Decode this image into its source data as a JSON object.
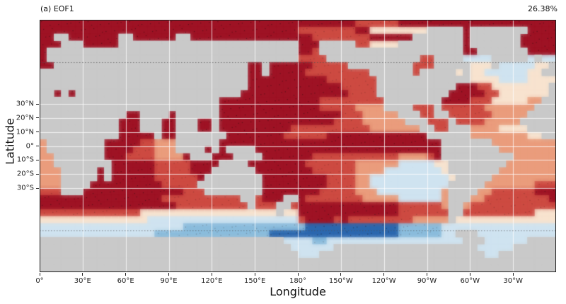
{
  "chart_data": {
    "type": "heatmap",
    "title_left": "(a) EOF1",
    "title_right": "26.38%",
    "xlabel": "Longitude",
    "ylabel": "Latitude",
    "x_range_deg": [
      0,
      360
    ],
    "y_range_deg": [
      -90,
      90
    ],
    "x_ticks": [
      {
        "deg": 0,
        "label": "0°"
      },
      {
        "deg": 30,
        "label": "30°E"
      },
      {
        "deg": 60,
        "label": "60°E"
      },
      {
        "deg": 90,
        "label": "90°E"
      },
      {
        "deg": 120,
        "label": "120°E"
      },
      {
        "deg": 150,
        "label": "150°E"
      },
      {
        "deg": 180,
        "label": "180°"
      },
      {
        "deg": 210,
        "label": "150°W"
      },
      {
        "deg": 240,
        "label": "120°W"
      },
      {
        "deg": 270,
        "label": "90°W"
      },
      {
        "deg": 300,
        "label": "60°W"
      },
      {
        "deg": 330,
        "label": "30°W"
      }
    ],
    "y_ticks": [
      {
        "deg": 30,
        "label": "30°N"
      },
      {
        "deg": 20,
        "label": "20°N"
      },
      {
        "deg": 10,
        "label": "10°N"
      },
      {
        "deg": 0,
        "label": "0°"
      },
      {
        "deg": -10,
        "label": "10°S"
      },
      {
        "deg": -20,
        "label": "20°S"
      },
      {
        "deg": -30,
        "label": "30°S"
      }
    ],
    "graticule": {
      "lon_step_deg": 30,
      "lat_solid_deg": [
        30,
        20,
        10,
        0,
        -10,
        -20,
        -30
      ],
      "lat_dashed_deg": [
        60,
        -60
      ]
    },
    "palette": {
      "L": "#c9c9c9",
      "D": "#9e1324",
      "r": "#cd4a42",
      "s": "#ea9c7c",
      "c": "#f8e3cf",
      "p": "#cfe3f0",
      "b": "#8abcdc",
      "B": "#2b67ae"
    },
    "class_values": {
      "L": "land",
      "D": 3,
      "r": 2,
      "s": 1,
      "c": 0,
      "p": -1,
      "b": -2,
      "B": -3
    },
    "grid_cols": 72,
    "grid_rows": 36,
    "grid": [
      [
        "DDDDDD",
        "DDDDDD",
        "DDDDDD",
        "DDDDDD",
        "DDDDDD",
        "DDDDDD",
        "DDDDDD",
        "DDrrrr",
        "rrDDDD",
        "DDDDDD",
        "DDDDDD",
        "DDDDDD"
      ],
      [
        "DDDDDD",
        "DDDDDD",
        "DDDDDD",
        "DDDDDD",
        "DDDDDD",
        "DDDDDD",
        "rrrrrr",
        "rrDDcc",
        "cccccc",
        "LLLLLD",
        "LLLLLL",
        "LLDDDD"
      ],
      [
        "DDLLDD",
        "DDDDDL",
        "LDDDDD",
        "DLLDDD",
        "DDDDDD",
        "DDDDDD",
        "DDrrrr",
        "rrrrDD",
        "DDDDLL",
        "LLLLLD",
        "LLLLLL",
        "LDDDDD"
      ],
      [
        "DDDLLL",
        "DDDDDL",
        "LLLLLL",
        "LLLLLL",
        "LLLLLL",
        "LLLLLL",
        "DDDLLL",
        "LLrrcc",
        "ccLLLL",
        "LLLLLD",
        "LLLLLL",
        "LDDDDD"
      ],
      [
        "DLLLLL",
        "LLLLLL",
        "LLLLLL",
        "LLLLLL",
        "LLLLLL",
        "LLLLLL",
        "DDrLLL",
        "LLLLLL",
        "LLLLLL",
        "LLLLLD",
        "DLLLLL",
        "LLDDDD"
      ],
      [
        "DLLLLL",
        "LLLLLL",
        "LLLLLL",
        "LLLLLL",
        "LLLLLL",
        "LLLLLL",
        "rrrrLL",
        "LLLLLL",
        "LLLLLr",
        "rLLLLp",
        "pppLLL",
        "LLpLpp"
      ],
      [
        "DDLLLL",
        "LLLLLL",
        "LLLLLL",
        "LLLLLL",
        "LLLLLD",
        "DLDDDD",
        "DDrrrr",
        "rLLLLL",
        "LLLLrr",
        "rLLLLL",
        "cccLpp",
        "pppccL"
      ],
      [
        "LLLLLL",
        "LLLLLL",
        "LLLLLL",
        "LLLLLL",
        "LLLLLD",
        "DLDDDD",
        "Drrrrr",
        "rrrrLL",
        "LLLLrL",
        "LLLLcL",
        "ccpppp",
        "ppccLL"
      ],
      [
        "LLLLLL",
        "LLLLLL",
        "LLLLLL",
        "LLLLLL",
        "LLLLLD",
        "DDDDDD",
        "DDDDrr",
        "rrrrrL",
        "LLLLLL",
        "LLLLLL",
        "ccccpp",
        "ppcccc"
      ],
      [
        "LLLLLL",
        "LLLLLL",
        "LLLLLL",
        "LLLLLL",
        "LLLLLD",
        "DDDDDD",
        "DDDDDD",
        "rrrrrL",
        "LLLLLL",
        "LLLLDD",
        "Drrccc",
        "cccccL"
      ],
      [
        "LLDLDL",
        "LLLLLL",
        "LLLLLL",
        "LLLLLL",
        "LLLLDD",
        "DDDDDD",
        "DDDDDD",
        "DrrrrL",
        "LLLLLL",
        "LLLDDD",
        "DDrrcc",
        "cccccL"
      ],
      [
        "LLLLLL",
        "LLLLLL",
        "LLLLLL",
        "LLLLLL",
        "LDDDDD",
        "DDDDDD",
        "DDDrrr",
        "rrrrrr",
        "LLLLLL",
        "LLDDDD",
        "rrrccc",
        "ccssLL"
      ],
      [
        "LLLLLL",
        "LLLLLL",
        "LLLLLL",
        "LLLLLL",
        "LDDDDD",
        "DDDDDD",
        "DDDrrr",
        "rrssss",
        "LLLLrr",
        "rLrrrr",
        "rrssss",
        "sssLLL"
      ],
      [
        "LLLLLL",
        "LLLLLL",
        "DDLLLL",
        "DLLLLL",
        "LDDDDD",
        "DDDDDD",
        "DDDDDD",
        "rrrsss",
        "ssLLLr",
        "rLLrrr",
        "rrrsss",
        "ssLLLL"
      ],
      [
        "LLLLLL",
        "LLLLLD",
        "DDLLLD",
        "DLLLDD",
        "LDDDDD",
        "DDDDDD",
        "DDDDDr",
        "rrrsss",
        "sssLLL",
        "rrrLrr",
        "rrssss",
        "sLLLLL"
      ],
      [
        "LLLLLL",
        "LLLLLD",
        "DDLLLD",
        "DLLLDD",
        "LDDDDD",
        "DDDDDr",
        "rrrrrr",
        "rrrrss",
        "sssssL",
        "LrrLLL",
        "sssscc",
        "ccLLLL"
      ],
      [
        "LLLLLL",
        "LLLLLD",
        "DDDDLD",
        "DLLLLL",
        "LLDDDD",
        "DDDDrr",
        "rrrrDD",
        "DDDDDD",
        "DDDDDD",
        "LLLLLL",
        "ssssss",
        "ssccLL"
      ],
      [
        "sLLLLL",
        "LLLDDD",
        "DDrrss",
        "sLLLLL",
        "LDDDDD",
        "DDDDDD",
        "DDDDDD",
        "DDDDDD",
        "DDDDDD",
        "DDLLLL",
        "LLLsss",
        "ssssss"
      ],
      [
        "sLLLLL",
        "LLLDDD",
        "Drrrss",
        "sLLLLD",
        "LDLLLL",
        "DDDDDD",
        "DDDDDD",
        "DDDDDD",
        "DDDDDD",
        "DDLLLL",
        "LLLLss",
        "ssssss"
      ],
      [
        "ssLLLL",
        "LLLDDD",
        "rrrrss",
        "ssDLLL",
        "DDDLLL",
        "LDDDDD",
        "DDrrrr",
        "rrrrrr",
        "rrssss",
        "rDLLLL",
        "LLLLLL",
        "ssssss"
      ],
      [
        "ssLLLL",
        "LLLLDD",
        "DDDDrr",
        "rrrDDD",
        "DLLLLD",
        "DDDDDD",
        "Drrrrr",
        "rrssss",
        "sspppp",
        "pccLLL",
        "LLLLLs",
        "ssssss"
      ],
      [
        "sssLLL",
        "LLDLDD",
        "DDDDrr",
        "rrrDDD",
        "LLLLLL",
        "DDDDDD",
        "DDrrrr",
        "rrssss",
        "pppppp",
        "ppcLLL",
        "LLLLss",
        "ssssss"
      ],
      [
        "sssLLL",
        "LLDLDD",
        "DDDDrr",
        "rrrrDL",
        "LLLLLL",
        "LDDDDD",
        "DDDDrr",
        "rrsspp",
        "pppppp",
        "pppcLL",
        "LLLsss",
        "ssssss"
      ],
      [
        "sssLLL",
        "LDDDDD",
        "DDDDDr",
        "rrrrLL",
        "LLLLLL",
        "LDDDDD",
        "DDDDrr",
        "rrsspp",
        "pppppp",
        "pppLLL",
        "LLssss",
        "sssrrr"
      ],
      [
        "rrrLLL",
        "DDDDDD",
        "DDDDDD",
        "DDrrrL",
        "LLLLLL",
        "LDDDDD",
        "DDDrrr",
        "rrsssp",
        "pppppp",
        "ppsLLL",
        "Lssrrr",
        "rrrDDD"
      ],
      [
        "DDDDDD",
        "DDDDDD",
        "DDDDDr",
        "rrrrrr",
        "rrrrLL",
        "rDDDLL",
        "Drrrrr",
        "rrrsss",
        "sspppp",
        "ppsLLL",
        "ssrrrr",
        "rrrrrD"
      ],
      [
        "DDDDDD",
        "DDDDDD",
        "DDDDDD",
        "Drrrrr",
        "rrrrrL",
        "rrrLLr",
        "DDDDDD",
        "DDDDDD",
        "DDrrrr",
        "rrsLLs",
        "rrrrrr",
        "rrrrrr"
      ],
      [
        "rrrrrr",
        "rrrrrr",
        "rrcccc",
        "cccccc",
        "cccccc",
        "cccLcc",
        "DDDDDD",
        "DDDDDD",
        "DDrrrr",
        "rrrLLr",
        "rrrrrr",
        "rrrccc"
      ],
      [
        "cccccc",
        "cccccc",
        "cccppp",
        "pppppp",
        "pppppp",
        "pppppp",
        "rDDDDr",
        "Drrrrr",
        "rrrrss",
        "sssLcc",
        "cccccc",
        "cccccc"
      ],
      [
        "pppppp",
        "pppppp",
        "pppppp",
        "ppbbbb",
        "bbbbbb",
        "bbbbbb",
        "bBBBBB",
        "BBBBBB",
        "BBbbbb",
        "bbpppp",
        "pppppp",
        "pppppp"
      ],
      [
        "pppppp",
        "pppppp",
        "ppppbb",
        "bbbbbb",
        "bbbbbb",
        "bbBBBB",
        "BBBBBB",
        "BBBBBB",
        "BBbbbb",
        "bbppLL",
        "Lppppp",
        "pppppp"
      ],
      [
        "LLLLLL",
        "LLLLLL",
        "LLLLLL",
        "LLLLLL",
        "LLLLLL",
        "LLLLpp",
        "ppbbpp",
        "pppppp",
        "pppppp",
        "pppppL",
        "LLpppp",
        "ppLLLL"
      ],
      [
        "LLLLLL",
        "LLLLLL",
        "LLLLLL",
        "LLLLLL",
        "LLLLLL",
        "LLLLLp",
        "pppppL",
        "LLLLLL",
        "LLLLLL",
        "LLLLLL",
        "Lppppp",
        "LLLLLL"
      ],
      [
        "LLLLLL",
        "LLLLLL",
        "LLLLLL",
        "LLLLLL",
        "LLLLLL",
        "LLLLLL",
        "pppLLL",
        "LLLLLL",
        "LLLLLL",
        "LLLLLL",
        "LLppLL",
        "LLLLLL"
      ],
      [
        "LLLLLL",
        "LLLLLL",
        "LLLLLL",
        "LLLLLL",
        "LLLLLL",
        "LLLLLL",
        "LLLLLL",
        "LLLLLL",
        "LLLLLL",
        "LLLLLL",
        "LLLLLL",
        "LLLLLL"
      ],
      [
        "LLLLLL",
        "LLLLLL",
        "LLLLLL",
        "LLLLLL",
        "LLLLLL",
        "LLLLLL",
        "LLLLLL",
        "LLLLLL",
        "LLLLLL",
        "LLLLLL",
        "LLLLLL",
        "LLLLLL"
      ]
    ]
  }
}
